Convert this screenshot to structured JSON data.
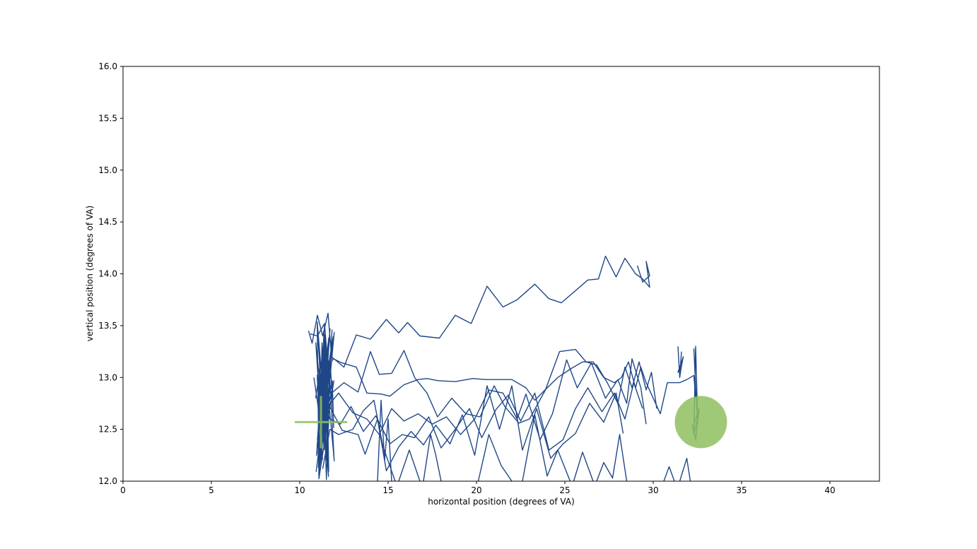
{
  "chart_data": {
    "type": "line",
    "title": "",
    "xlabel": "horizontal position (degrees of VA)",
    "ylabel": "vertical position (degrees of VA)",
    "xlim": [
      0,
      42.8
    ],
    "ylim": [
      12.0,
      16.0
    ],
    "xticks": [
      0,
      5,
      10,
      15,
      20,
      25,
      30,
      35,
      40
    ],
    "yticks": [
      12.0,
      12.5,
      13.0,
      13.5,
      14.0,
      14.5,
      15.0,
      15.5,
      16.0
    ],
    "grid": false,
    "legend": "none",
    "line_color": "#1f4788",
    "marker_color": "#8fbf5f",
    "fixation_cross": {
      "x": 11.2,
      "y": 12.57
    },
    "target": {
      "x": 32.7,
      "y": 12.57
    },
    "series": [
      {
        "points": [
          [
            10.5,
            13.45
          ],
          [
            10.7,
            13.33
          ],
          [
            11.0,
            13.6
          ],
          [
            11.3,
            13.4
          ],
          [
            11.6,
            13.62
          ],
          [
            11.8,
            13.2
          ],
          [
            12.5,
            13.1
          ],
          [
            13.2,
            13.41
          ],
          [
            14.0,
            13.37
          ],
          [
            14.9,
            13.56
          ],
          [
            15.6,
            13.43
          ],
          [
            16.1,
            13.53
          ],
          [
            16.8,
            13.4
          ],
          [
            17.9,
            13.38
          ],
          [
            18.8,
            13.6
          ],
          [
            19.7,
            13.52
          ],
          [
            20.6,
            13.88
          ],
          [
            21.5,
            13.68
          ],
          [
            22.3,
            13.75
          ],
          [
            23.3,
            13.9
          ],
          [
            24.1,
            13.76
          ],
          [
            24.8,
            13.72
          ],
          [
            26.3,
            13.94
          ],
          [
            26.9,
            13.95
          ],
          [
            27.3,
            14.17
          ],
          [
            27.9,
            13.97
          ],
          [
            28.4,
            14.15
          ],
          [
            29.0,
            14.0
          ],
          [
            29.4,
            13.95
          ],
          [
            29.8,
            13.87
          ],
          [
            29.6,
            14.12
          ],
          [
            29.8,
            13.98
          ],
          [
            29.4,
            13.92
          ],
          [
            29.1,
            14.08
          ]
        ]
      },
      {
        "points": [
          [
            10.6,
            13.42
          ],
          [
            11.0,
            13.4
          ],
          [
            11.4,
            13.52
          ],
          [
            11.6,
            13.1
          ],
          [
            11.9,
            13.18
          ],
          [
            12.4,
            13.14
          ],
          [
            13.2,
            13.1
          ],
          [
            13.8,
            12.85
          ],
          [
            14.6,
            12.84
          ],
          [
            15.1,
            12.82
          ],
          [
            15.9,
            12.93
          ],
          [
            16.7,
            12.98
          ],
          [
            17.2,
            12.99
          ],
          [
            17.8,
            12.97
          ],
          [
            18.8,
            12.96
          ],
          [
            19.8,
            12.99
          ],
          [
            20.5,
            12.98
          ],
          [
            21.5,
            12.98
          ],
          [
            22.0,
            12.98
          ],
          [
            22.8,
            12.9
          ],
          [
            23.3,
            12.78
          ],
          [
            24.0,
            12.9
          ],
          [
            24.6,
            13.0
          ],
          [
            25.3,
            13.08
          ],
          [
            26.0,
            13.15
          ],
          [
            26.6,
            13.15
          ],
          [
            27.2,
            13.0
          ],
          [
            27.8,
            12.95
          ],
          [
            28.2,
            13.0
          ],
          [
            28.6,
            13.15
          ],
          [
            29.0,
            12.9
          ],
          [
            29.3,
            13.1
          ],
          [
            29.6,
            12.95
          ],
          [
            30.0,
            12.8
          ],
          [
            30.4,
            12.65
          ],
          [
            30.8,
            12.95
          ],
          [
            31.5,
            12.95
          ],
          [
            31.9,
            12.98
          ],
          [
            32.3,
            13.02
          ],
          [
            32.4,
            12.8
          ]
        ]
      },
      {
        "points": [
          [
            10.8,
            13.0
          ],
          [
            11.1,
            12.65
          ],
          [
            11.4,
            12.9
          ],
          [
            11.8,
            12.85
          ],
          [
            12.5,
            12.95
          ],
          [
            13.3,
            12.86
          ],
          [
            14.0,
            13.25
          ],
          [
            14.5,
            13.03
          ],
          [
            15.2,
            13.04
          ],
          [
            15.9,
            13.26
          ],
          [
            16.5,
            13.0
          ],
          [
            17.2,
            12.85
          ],
          [
            17.8,
            12.62
          ],
          [
            18.6,
            12.8
          ],
          [
            19.4,
            12.65
          ],
          [
            20.2,
            12.62
          ],
          [
            21.0,
            12.92
          ],
          [
            21.6,
            12.72
          ],
          [
            22.4,
            12.56
          ],
          [
            23.0,
            12.6
          ],
          [
            23.9,
            12.88
          ],
          [
            24.7,
            13.25
          ],
          [
            25.6,
            13.27
          ],
          [
            26.2,
            13.15
          ],
          [
            26.8,
            13.12
          ],
          [
            27.4,
            12.95
          ],
          [
            28.0,
            12.75
          ],
          [
            28.4,
            13.1
          ],
          [
            28.8,
            12.9
          ],
          [
            29.2,
            13.15
          ],
          [
            29.6,
            12.88
          ],
          [
            29.9,
            13.05
          ],
          [
            30.2,
            12.7
          ]
        ]
      },
      {
        "points": [
          [
            10.9,
            12.8
          ],
          [
            11.2,
            13.15
          ],
          [
            11.5,
            12.7
          ],
          [
            12.2,
            12.85
          ],
          [
            13.0,
            12.66
          ],
          [
            13.8,
            12.6
          ],
          [
            14.5,
            12.45
          ],
          [
            15.2,
            12.7
          ],
          [
            15.9,
            12.58
          ],
          [
            16.7,
            12.65
          ],
          [
            17.5,
            12.55
          ],
          [
            18.3,
            12.62
          ],
          [
            19.1,
            12.45
          ],
          [
            19.9,
            12.6
          ],
          [
            20.7,
            12.88
          ],
          [
            21.5,
            12.85
          ],
          [
            22.3,
            12.6
          ],
          [
            22.8,
            12.84
          ],
          [
            23.6,
            12.4
          ],
          [
            24.3,
            12.65
          ],
          [
            25.1,
            13.17
          ],
          [
            25.7,
            12.9
          ],
          [
            26.5,
            13.14
          ],
          [
            27.3,
            12.8
          ],
          [
            28.0,
            12.98
          ],
          [
            28.5,
            12.75
          ],
          [
            28.8,
            13.18
          ],
          [
            29.3,
            12.9
          ],
          [
            29.6,
            12.55
          ]
        ]
      },
      {
        "points": [
          [
            11.0,
            12.4
          ],
          [
            11.3,
            12.85
          ],
          [
            11.7,
            12.6
          ],
          [
            12.3,
            12.55
          ],
          [
            12.9,
            12.72
          ],
          [
            13.6,
            12.48
          ],
          [
            14.3,
            12.63
          ],
          [
            15.1,
            12.36
          ],
          [
            15.8,
            12.45
          ],
          [
            16.5,
            12.42
          ],
          [
            17.3,
            12.62
          ],
          [
            18.0,
            12.32
          ],
          [
            18.8,
            12.5
          ],
          [
            19.6,
            12.7
          ],
          [
            20.3,
            12.42
          ],
          [
            21.1,
            12.69
          ],
          [
            21.8,
            12.83
          ],
          [
            22.5,
            12.58
          ],
          [
            23.3,
            12.85
          ],
          [
            24.1,
            12.3
          ],
          [
            24.9,
            12.4
          ],
          [
            25.6,
            12.7
          ],
          [
            26.3,
            12.9
          ],
          [
            27.1,
            12.67
          ],
          [
            27.8,
            12.85
          ],
          [
            28.4,
            12.6
          ],
          [
            28.9,
            12.95
          ],
          [
            29.4,
            12.7
          ]
        ]
      },
      {
        "points": [
          [
            11.1,
            12.3
          ],
          [
            11.6,
            12.75
          ],
          [
            12.4,
            12.49
          ],
          [
            13.3,
            12.45
          ],
          [
            13.7,
            12.26
          ],
          [
            14.4,
            12.6
          ],
          [
            14.9,
            12.1
          ],
          [
            15.6,
            12.33
          ],
          [
            16.3,
            12.48
          ],
          [
            17.0,
            12.35
          ],
          [
            17.7,
            12.54
          ],
          [
            18.5,
            12.36
          ],
          [
            19.2,
            12.64
          ],
          [
            19.9,
            12.25
          ],
          [
            20.6,
            12.92
          ],
          [
            21.3,
            12.5
          ],
          [
            22.0,
            12.92
          ],
          [
            22.6,
            12.3
          ],
          [
            23.4,
            12.7
          ],
          [
            24.2,
            12.22
          ],
          [
            24.9,
            12.36
          ],
          [
            25.6,
            12.46
          ],
          [
            26.4,
            12.75
          ],
          [
            27.2,
            12.57
          ],
          [
            27.9,
            12.85
          ],
          [
            28.3,
            12.46
          ]
        ]
      },
      {
        "points": [
          [
            11.3,
            12.12
          ],
          [
            11.7,
            12.5
          ],
          [
            12.2,
            12.45
          ],
          [
            13.0,
            12.5
          ],
          [
            13.6,
            12.68
          ],
          [
            14.2,
            12.78
          ],
          [
            14.7,
            12.34
          ],
          [
            15.4,
            12.0
          ]
        ]
      },
      {
        "points": [
          [
            14.4,
            12.0
          ],
          [
            14.6,
            12.78
          ],
          [
            14.8,
            12.2
          ],
          [
            15.0,
            12.6
          ],
          [
            15.2,
            12.0
          ]
        ]
      },
      {
        "points": [
          [
            15.6,
            12.0
          ],
          [
            16.2,
            12.3
          ],
          [
            16.8,
            12.0
          ]
        ]
      },
      {
        "points": [
          [
            17.0,
            12.0
          ],
          [
            17.4,
            12.45
          ],
          [
            17.7,
            12.25
          ],
          [
            18.0,
            12.0
          ]
        ]
      },
      {
        "points": [
          [
            20.1,
            12.0
          ],
          [
            20.7,
            12.45
          ],
          [
            21.4,
            12.15
          ],
          [
            22.0,
            12.0
          ]
        ]
      },
      {
        "points": [
          [
            22.6,
            12.0
          ],
          [
            23.3,
            12.64
          ],
          [
            24.0,
            12.05
          ],
          [
            24.6,
            12.3
          ],
          [
            25.3,
            12.0
          ]
        ]
      },
      {
        "points": [
          [
            25.5,
            12.0
          ],
          [
            26.0,
            12.28
          ],
          [
            26.6,
            12.0
          ]
        ]
      },
      {
        "points": [
          [
            26.8,
            12.0
          ],
          [
            27.2,
            12.18
          ],
          [
            27.7,
            12.03
          ],
          [
            28.1,
            12.45
          ],
          [
            28.5,
            12.0
          ]
        ]
      },
      {
        "points": [
          [
            30.6,
            12.0
          ],
          [
            30.9,
            12.14
          ],
          [
            31.2,
            12.0
          ]
        ]
      },
      {
        "points": [
          [
            31.5,
            12.0
          ],
          [
            31.9,
            12.22
          ],
          [
            32.1,
            12.0
          ]
        ]
      },
      {
        "points": [
          [
            31.4,
            13.3
          ],
          [
            31.5,
            13.0
          ],
          [
            31.6,
            13.12
          ],
          [
            31.4,
            13.05
          ],
          [
            31.7,
            13.2
          ],
          [
            31.5,
            13.02
          ],
          [
            31.6,
            13.25
          ]
        ]
      },
      {
        "points": [
          [
            32.3,
            13.28
          ],
          [
            32.4,
            12.9
          ],
          [
            32.5,
            12.6
          ],
          [
            32.3,
            12.45
          ],
          [
            32.4,
            13.3
          ],
          [
            32.5,
            12.68
          ]
        ]
      },
      {
        "points": [
          [
            32.3,
            12.55
          ],
          [
            32.6,
            12.7
          ],
          [
            32.4,
            12.4
          ],
          [
            32.2,
            12.55
          ]
        ]
      }
    ],
    "burst": {
      "x_min": 10.9,
      "x_max": 12.0,
      "y_min": 12.0,
      "y_max": 13.55,
      "count": 60
    }
  }
}
